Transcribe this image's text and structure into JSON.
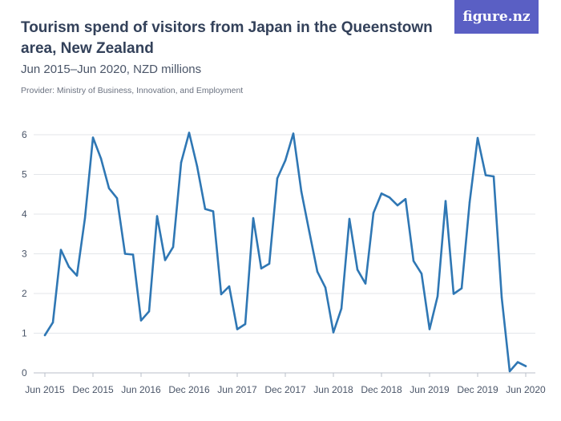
{
  "header": {
    "title": "Tourism spend of visitors from Japan in the Queenstown area, New Zealand",
    "subtitle": "Jun 2015–Jun 2020, NZD millions",
    "provider": "Provider: Ministry of Business, Innovation, and Employment",
    "logo_text": "figure.nz"
  },
  "colors": {
    "line": "#2f77b4",
    "grid": "#e3e6ea",
    "logo_bg": "#5a5fc4"
  },
  "chart_data": {
    "type": "line",
    "title": "Tourism spend of visitors from Japan in the Queenstown area, New Zealand",
    "subtitle": "Jun 2015–Jun 2020, NZD millions",
    "xlabel": "",
    "ylabel": "",
    "ylim": [
      0,
      6
    ],
    "yticks": [
      0,
      1,
      2,
      3,
      4,
      5,
      6
    ],
    "grid": true,
    "x_start": "Jun 2015",
    "x_tick_labels": [
      "Jun 2015",
      "Dec 2015",
      "Jun 2016",
      "Dec 2016",
      "Jun 2017",
      "Dec 2017",
      "Jun 2018",
      "Dec 2018",
      "Jun 2019",
      "Dec 2019",
      "Jun 2020"
    ],
    "series": [
      {
        "values": [
          0.95,
          1.27,
          3.1,
          2.67,
          2.45,
          3.9,
          5.93,
          5.4,
          4.65,
          4.4,
          3.0,
          2.98,
          1.32,
          1.55,
          3.95,
          2.84,
          3.17,
          5.3,
          6.05,
          5.2,
          4.13,
          4.07,
          1.98,
          2.18,
          1.1,
          1.23,
          3.9,
          2.63,
          2.75,
          4.9,
          5.35,
          6.03,
          4.57,
          3.55,
          2.55,
          2.15,
          1.02,
          1.62,
          3.88,
          2.6,
          2.25,
          4.03,
          4.52,
          4.42,
          4.22,
          4.38,
          2.82,
          2.5,
          1.1,
          1.93,
          4.33,
          1.99,
          2.13,
          4.3,
          5.92,
          4.98,
          4.95,
          1.9,
          0.04,
          0.27,
          0.17
        ]
      }
    ]
  }
}
